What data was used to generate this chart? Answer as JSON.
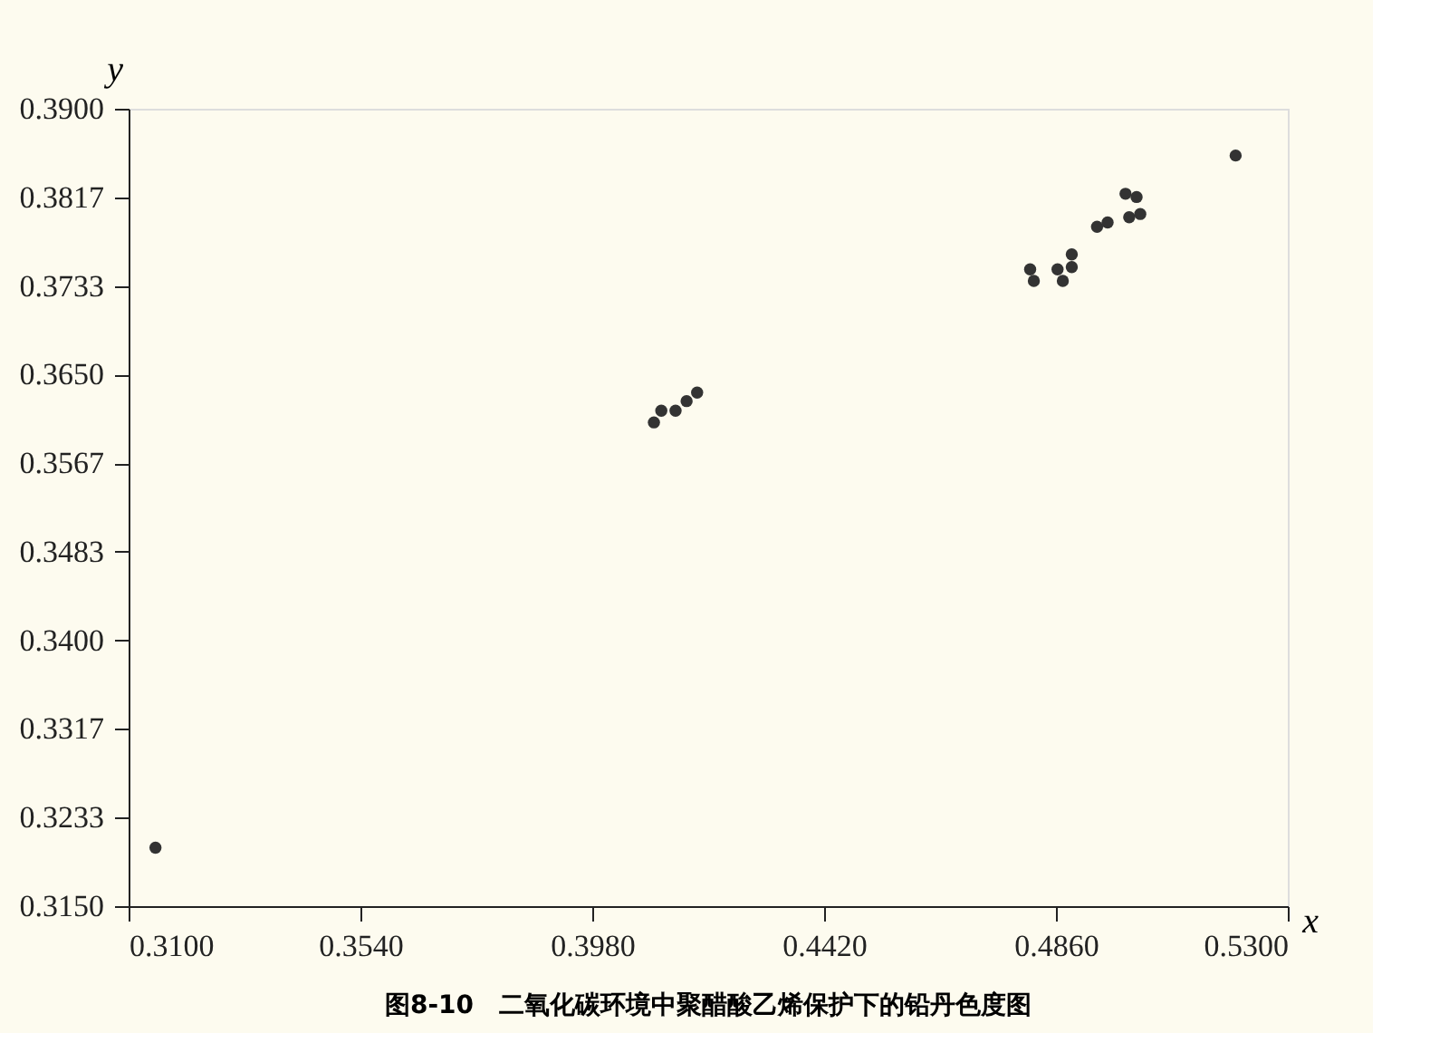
{
  "chart_data": {
    "type": "scatter",
    "title": "图8-10　二氧化碳环境中聚醋酸乙烯保护下的铅丹色度图",
    "xlabel": "x",
    "ylabel": "y",
    "x": [
      0.3151,
      0.4097,
      0.4111,
      0.4138,
      0.4159,
      0.4179,
      0.4811,
      0.4818,
      0.4863,
      0.4873,
      0.489,
      0.489,
      0.4938,
      0.4958,
      0.4992,
      0.5013,
      0.4999,
      0.502,
      0.5201
    ],
    "series": [
      {
        "color": "#333333",
        "values": [
          0.3205,
          0.3605,
          0.3616,
          0.3616,
          0.3625,
          0.3633,
          0.3749,
          0.3738,
          0.3749,
          0.3738,
          0.3763,
          0.3751,
          0.3789,
          0.3793,
          0.382,
          0.3817,
          0.3798,
          0.3801,
          0.3856
        ]
      }
    ],
    "xlim": [
      0.31,
      0.53
    ],
    "ylim": [
      0.315,
      0.39
    ],
    "xticks": [
      {
        "value": 0.31,
        "label": "0.3100"
      },
      {
        "value": 0.354,
        "label": "0.3540"
      },
      {
        "value": 0.398,
        "label": "0.3980"
      },
      {
        "value": 0.442,
        "label": "0.4420"
      },
      {
        "value": 0.486,
        "label": "0.4860"
      },
      {
        "value": 0.53,
        "label": "0.5300"
      }
    ],
    "yticks": [
      {
        "value": 0.315,
        "label": "0.3150"
      },
      {
        "value": 0.32333,
        "label": "0.3233"
      },
      {
        "value": 0.33167,
        "label": "0.3317"
      },
      {
        "value": 0.34,
        "label": "0.3400"
      },
      {
        "value": 0.34833,
        "label": "0.3483"
      },
      {
        "value": 0.35667,
        "label": "0.3567"
      },
      {
        "value": 0.365,
        "label": "0.3650"
      },
      {
        "value": 0.37333,
        "label": "0.3733"
      },
      {
        "value": 0.38167,
        "label": "0.3817"
      },
      {
        "value": 0.39,
        "label": "0.3900"
      }
    ],
    "grid": false
  }
}
